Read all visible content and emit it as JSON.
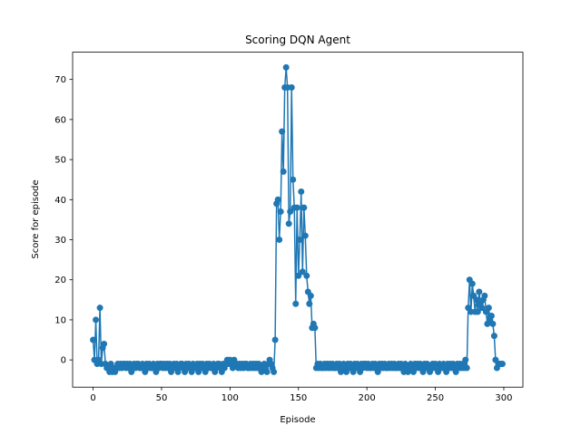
{
  "chart_data": {
    "type": "line",
    "title": "Scoring DQN Agent",
    "x_label": "Episode",
    "y_label": "Score for episode",
    "x": [
      0,
      1,
      2,
      3,
      4,
      5,
      6,
      7,
      8,
      9,
      10,
      11,
      12,
      13,
      14,
      15,
      16,
      17,
      18,
      19,
      20,
      21,
      22,
      23,
      24,
      25,
      26,
      27,
      28,
      29,
      30,
      31,
      32,
      33,
      34,
      35,
      36,
      37,
      38,
      39,
      40,
      41,
      42,
      43,
      44,
      45,
      46,
      47,
      48,
      49,
      50,
      51,
      52,
      53,
      54,
      55,
      56,
      57,
      58,
      59,
      60,
      61,
      62,
      63,
      64,
      65,
      66,
      67,
      68,
      69,
      70,
      71,
      72,
      73,
      74,
      75,
      76,
      77,
      78,
      79,
      80,
      81,
      82,
      83,
      84,
      85,
      86,
      87,
      88,
      89,
      90,
      91,
      92,
      93,
      94,
      95,
      96,
      97,
      98,
      99,
      100,
      101,
      102,
      103,
      104,
      105,
      106,
      107,
      108,
      109,
      110,
      111,
      112,
      113,
      114,
      115,
      116,
      117,
      118,
      119,
      120,
      121,
      122,
      123,
      124,
      125,
      126,
      127,
      128,
      129,
      130,
      131,
      132,
      133,
      134,
      135,
      136,
      137,
      138,
      139,
      140,
      141,
      142,
      143,
      144,
      145,
      146,
      147,
      148,
      149,
      150,
      151,
      152,
      153,
      154,
      155,
      156,
      157,
      158,
      159,
      160,
      161,
      162,
      163,
      164,
      165,
      166,
      167,
      168,
      169,
      170,
      171,
      172,
      173,
      174,
      175,
      176,
      177,
      178,
      179,
      180,
      181,
      182,
      183,
      184,
      185,
      186,
      187,
      188,
      189,
      190,
      191,
      192,
      193,
      194,
      195,
      196,
      197,
      198,
      199,
      200,
      201,
      202,
      203,
      204,
      205,
      206,
      207,
      208,
      209,
      210,
      211,
      212,
      213,
      214,
      215,
      216,
      217,
      218,
      219,
      220,
      221,
      222,
      223,
      224,
      225,
      226,
      227,
      228,
      229,
      230,
      231,
      232,
      233,
      234,
      235,
      236,
      237,
      238,
      239,
      240,
      241,
      242,
      243,
      244,
      245,
      246,
      247,
      248,
      249,
      250,
      251,
      252,
      253,
      254,
      255,
      256,
      257,
      258,
      259,
      260,
      261,
      262,
      263,
      264,
      265,
      266,
      267,
      268,
      269,
      270,
      271,
      272,
      273,
      274,
      275,
      276,
      277,
      278,
      279,
      280,
      281,
      282,
      283,
      284,
      285,
      286,
      287,
      288,
      289,
      290,
      291,
      292,
      293,
      294,
      295,
      296,
      297,
      298,
      299
    ],
    "series": [
      {
        "color": "#1f77b4",
        "values": [
          5,
          0,
          10,
          -1,
          0,
          13,
          -1,
          3,
          4,
          -1,
          -2,
          -2,
          -3,
          -1,
          -3,
          -2,
          -3,
          -2,
          -1,
          -2,
          -1,
          -2,
          -1,
          -1,
          -2,
          -1,
          -2,
          -1,
          -3,
          -2,
          -1,
          -2,
          -1,
          -1,
          -2,
          -2,
          -1,
          -2,
          -3,
          -1,
          -2,
          -1,
          -2,
          -2,
          -1,
          -2,
          -3,
          -1,
          -2,
          -1,
          -1,
          -2,
          -1,
          -2,
          -1,
          -2,
          -1,
          -3,
          -2,
          -1,
          -2,
          -1,
          -3,
          -2,
          -1,
          -1,
          -2,
          -3,
          -1,
          -2,
          -1,
          -2,
          -3,
          -1,
          -2,
          -2,
          -1,
          -3,
          -1,
          -2,
          -1,
          -2,
          -3,
          -1,
          -2,
          -1,
          -2,
          -2,
          -1,
          -3,
          -2,
          -1,
          -1,
          -2,
          -3,
          -1,
          -2,
          -1,
          0,
          -1,
          0,
          -1,
          -2,
          0,
          -1,
          -1,
          -2,
          -1,
          -2,
          -1,
          -2,
          -1,
          -1,
          -2,
          -2,
          -1,
          -2,
          -1,
          -2,
          -1,
          -2,
          -1,
          -2,
          -3,
          -2,
          -1,
          -2,
          -3,
          -1,
          0,
          -1,
          -2,
          -3,
          5,
          39,
          40,
          30,
          37,
          57,
          47,
          68,
          73,
          68,
          34,
          37,
          68,
          45,
          38,
          14,
          38,
          21,
          30,
          42,
          22,
          38,
          31,
          21,
          17,
          14,
          16,
          8,
          9,
          8,
          -2,
          -1,
          -2,
          -1,
          -2,
          -2,
          -1,
          -2,
          -1,
          -2,
          -1,
          -2,
          -1,
          -2,
          -2,
          -1,
          -2,
          -1,
          -3,
          -2,
          -1,
          -2,
          -3,
          -1,
          -2,
          -1,
          -2,
          -3,
          -1,
          -2,
          -1,
          -2,
          -3,
          -1,
          -2,
          -1,
          -1,
          -2,
          -1,
          -2,
          -2,
          -1,
          -2,
          -1,
          -2,
          -3,
          -1,
          -2,
          -1,
          -2,
          -1,
          -2,
          -2,
          -1,
          -2,
          -1,
          -2,
          -1,
          -2,
          -2,
          -1,
          -2,
          -1,
          -2,
          -3,
          -1,
          -2,
          -3,
          -2,
          -1,
          -2,
          -3,
          -1,
          -2,
          -1,
          -2,
          -1,
          -2,
          -3,
          -1,
          -2,
          -1,
          -2,
          -3,
          -2,
          -1,
          -2,
          -1,
          -2,
          -3,
          -1,
          -2,
          -2,
          -1,
          -2,
          -3,
          -1,
          -2,
          -1,
          -2,
          -1,
          -2,
          -3,
          -1,
          -2,
          -1,
          -2,
          -1,
          -2,
          0,
          -2,
          13,
          20,
          12,
          19,
          16,
          12,
          15,
          12,
          17,
          14,
          13,
          15,
          16,
          12,
          9,
          13,
          10,
          11,
          9,
          6,
          0,
          -2,
          -1,
          -1,
          -1,
          -1
        ]
      }
    ],
    "xlim": [
      -14.95,
      313.95
    ],
    "ylim": [
      -6.8,
      76.8
    ],
    "xticks": [
      0,
      50,
      100,
      150,
      200,
      250,
      300
    ],
    "yticks": [
      0,
      10,
      20,
      30,
      40,
      50,
      60,
      70
    ],
    "grid": false
  }
}
